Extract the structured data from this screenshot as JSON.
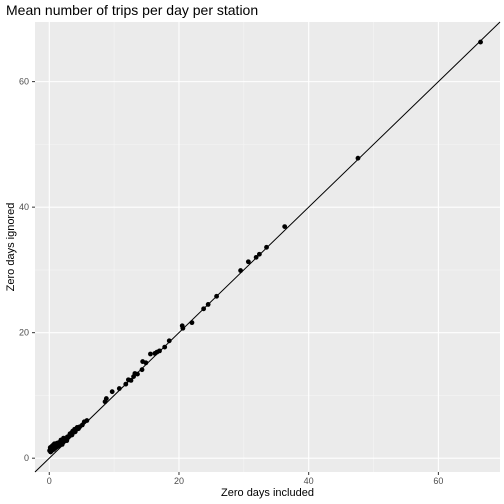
{
  "chart_data": {
    "type": "scatter",
    "title": "Mean number of trips per day per station",
    "xlabel": "Zero days included",
    "ylabel": "Zero days ignored",
    "xlim": [
      -2.2,
      69.5
    ],
    "ylim": [
      -2.2,
      69.5
    ],
    "xticks": [
      0,
      20,
      40,
      60
    ],
    "yticks": [
      0,
      20,
      40,
      60
    ],
    "grid": true,
    "legend": "none",
    "reference_line": {
      "type": "abline",
      "slope": 1,
      "intercept": 0
    },
    "colors": {
      "panel_background": "#ebebeb",
      "grid_major": "#ffffff",
      "grid_minor": "#f5f5f5",
      "point": "#000000",
      "line": "#000000",
      "tick_text": "#4d4d4d",
      "tick_mark": "#333333"
    },
    "points": [
      [
        66.5,
        66.3
      ],
      [
        47.6,
        47.8
      ],
      [
        36.3,
        36.9
      ],
      [
        33.5,
        33.6
      ],
      [
        32.4,
        32.5
      ],
      [
        31.9,
        32.0
      ],
      [
        30.7,
        31.3
      ],
      [
        29.5,
        29.9
      ],
      [
        25.8,
        25.8
      ],
      [
        24.5,
        24.5
      ],
      [
        23.8,
        23.8
      ],
      [
        22.0,
        21.6
      ],
      [
        20.6,
        20.7
      ],
      [
        20.5,
        21.1
      ],
      [
        18.5,
        18.7
      ],
      [
        17.8,
        17.7
      ],
      [
        17.0,
        17.1
      ],
      [
        16.6,
        16.9
      ],
      [
        16.3,
        16.7
      ],
      [
        15.6,
        16.6
      ],
      [
        14.9,
        15.2
      ],
      [
        14.4,
        15.4
      ],
      [
        14.3,
        14.1
      ],
      [
        13.6,
        13.4
      ],
      [
        13.2,
        13.5
      ],
      [
        13.0,
        13.0
      ],
      [
        12.6,
        12.4
      ],
      [
        12.2,
        12.5
      ],
      [
        11.8,
        11.8
      ],
      [
        10.8,
        11.1
      ],
      [
        9.7,
        10.6
      ],
      [
        8.8,
        9.5
      ],
      [
        8.6,
        9.0
      ],
      [
        5.8,
        6.0
      ],
      [
        5.4,
        5.8
      ],
      [
        5.1,
        5.3
      ],
      [
        4.7,
        5.0
      ],
      [
        4.3,
        4.9
      ],
      [
        3.9,
        4.6
      ],
      [
        3.6,
        4.3
      ],
      [
        3.4,
        4.0
      ],
      [
        3.1,
        3.6
      ],
      [
        2.9,
        3.3
      ],
      [
        2.6,
        3.0
      ],
      [
        2.3,
        2.7
      ],
      [
        2.1,
        2.5
      ],
      [
        1.9,
        2.6
      ],
      [
        1.6,
        2.2
      ],
      [
        1.4,
        2.0
      ],
      [
        1.1,
        1.8
      ],
      [
        0.9,
        1.6
      ],
      [
        0.7,
        1.4
      ],
      [
        0.5,
        1.3
      ],
      [
        0.3,
        1.1
      ],
      [
        0.2,
        1.0
      ],
      [
        0.1,
        1.3
      ],
      [
        0.15,
        1.7
      ],
      [
        0.25,
        1.5
      ],
      [
        0.4,
        1.9
      ],
      [
        0.6,
        2.1
      ],
      [
        0.8,
        2.3
      ],
      [
        1.0,
        2.0
      ],
      [
        1.2,
        2.4
      ],
      [
        1.5,
        2.5
      ],
      [
        1.8,
        2.9
      ],
      [
        2.2,
        3.2
      ],
      [
        2.5,
        3.1
      ],
      [
        2.8,
        3.4
      ],
      [
        3.2,
        3.9
      ],
      [
        3.5,
        3.7
      ],
      [
        4.0,
        4.2
      ],
      [
        4.5,
        4.7
      ],
      [
        0.05,
        1.2
      ],
      [
        0.35,
        1.4
      ],
      [
        0.55,
        1.7
      ],
      [
        1.3,
        1.9
      ],
      [
        2.0,
        2.2
      ],
      [
        2.7,
        2.8
      ]
    ]
  }
}
